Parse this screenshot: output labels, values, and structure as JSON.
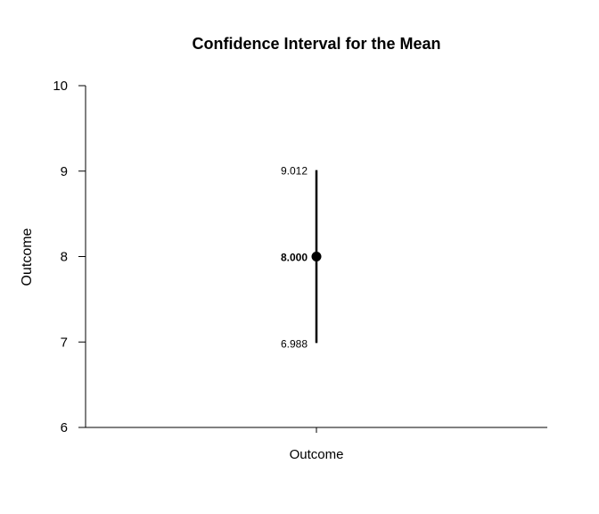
{
  "chart_data": {
    "type": "errorbar",
    "title": "Confidence Interval for the Mean",
    "xlabel": "",
    "ylabel": "Outcome",
    "categories": [
      "Outcome"
    ],
    "ylim": [
      6,
      10
    ],
    "yticks": [
      6,
      7,
      8,
      9,
      10
    ],
    "ytick_labels": [
      "6",
      "7",
      "8",
      "9",
      "10"
    ],
    "grid": false,
    "legend": "none",
    "series": [
      {
        "category": "Outcome",
        "mean": 8.0,
        "lower": 6.988,
        "upper": 9.012,
        "mean_label": "8.000",
        "lower_label": "6.988",
        "upper_label": "9.012"
      }
    ],
    "colors": {
      "line": "#000000",
      "point": "#000000",
      "axis": "#000000"
    }
  }
}
